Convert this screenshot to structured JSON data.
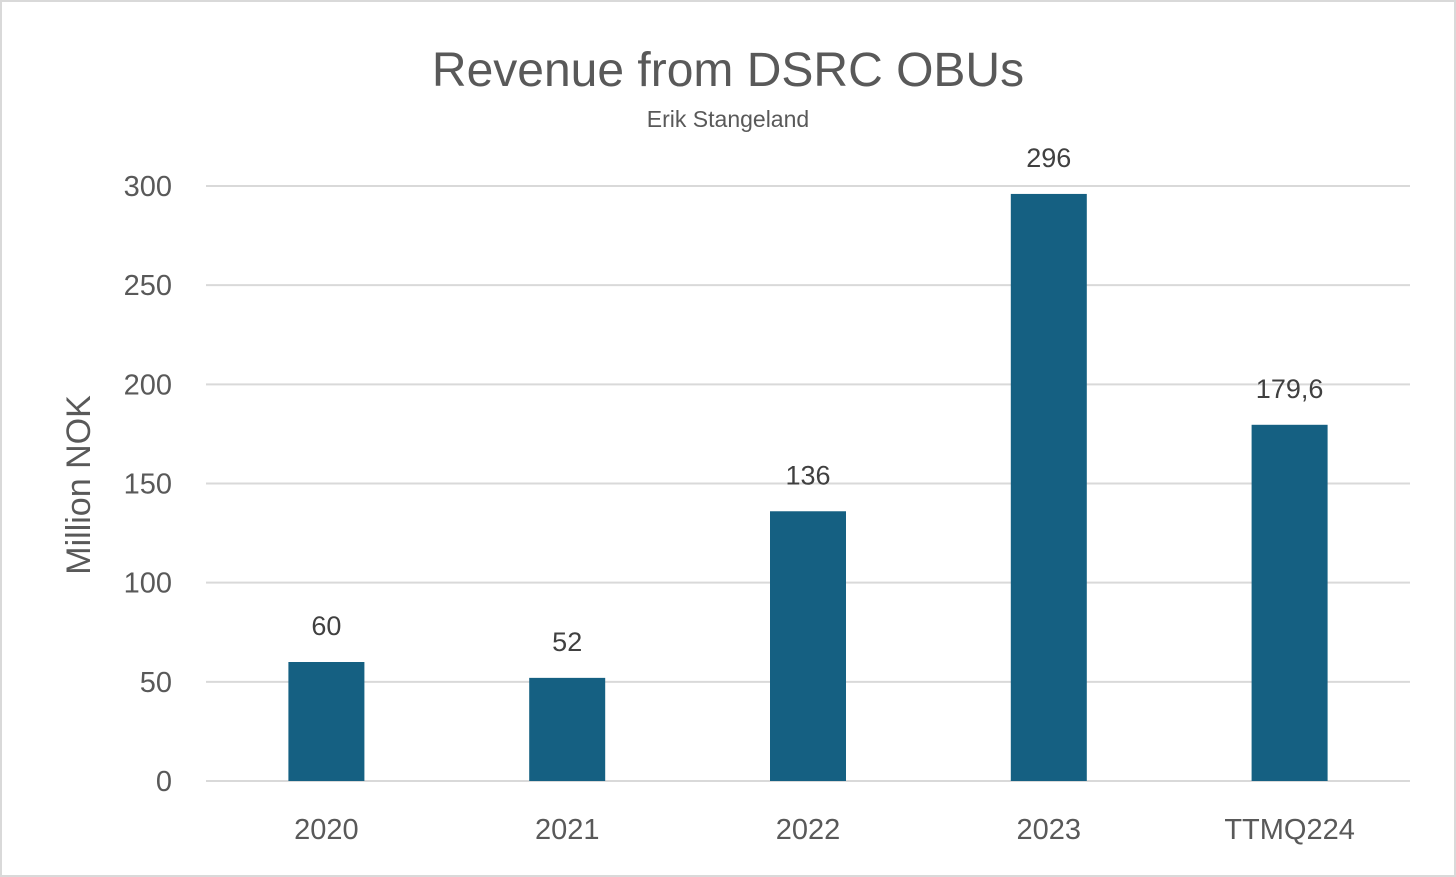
{
  "chart_data": {
    "type": "bar",
    "title": "Revenue from DSRC OBUs",
    "subtitle": "Erik Stangeland",
    "xlabel": "",
    "ylabel": "Million NOK",
    "categories": [
      "2020",
      "2021",
      "2022",
      "2023",
      "TTMQ224"
    ],
    "values": [
      60,
      52,
      136,
      296,
      179.6
    ],
    "data_labels": [
      "60",
      "52",
      "136",
      "296",
      "179,6"
    ],
    "ylim": [
      0,
      300
    ],
    "yticks": [
      0,
      50,
      100,
      150,
      200,
      250,
      300
    ],
    "grid": true,
    "legend": "none",
    "colors": {
      "bar": "#156082",
      "gridline": "#d9d9d9",
      "text": "#595959",
      "label": "#404040"
    }
  }
}
